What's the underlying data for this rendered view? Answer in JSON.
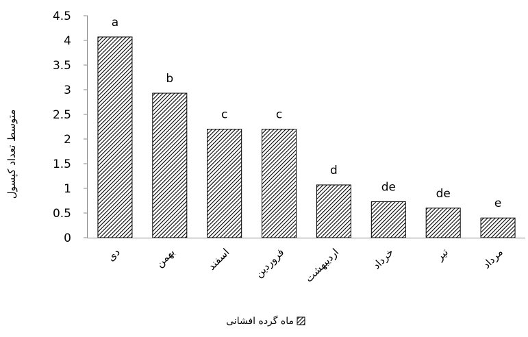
{
  "chart_data": {
    "type": "bar",
    "categories": [
      "دی",
      "بهمن",
      "اسفند",
      "فروردین",
      "اردیبهشت",
      "خرداد",
      "تیر",
      "مرداد"
    ],
    "series": [
      {
        "name": "ماه گرده افشانی",
        "values": [
          4.07,
          2.93,
          2.2,
          2.2,
          1.07,
          0.73,
          0.6,
          0.4
        ],
        "labels": [
          "a",
          "b",
          "c",
          "c",
          "d",
          "de",
          "de",
          "e"
        ]
      }
    ],
    "title": "",
    "xlabel": "",
    "ylabel": "متوسط تعداد کپسول",
    "ylim": [
      0,
      4.5
    ],
    "yticks": [
      0,
      0.5,
      1,
      1.5,
      2,
      2.5,
      3,
      3.5,
      4,
      4.5
    ],
    "ytick_labels": [
      "0",
      "0.5",
      "1",
      "1.5",
      "2",
      "2.5",
      "3",
      "3.5",
      "4",
      "4.5"
    ],
    "grid": false,
    "legend": "bottom",
    "bar_pattern": "diagonal-hatch",
    "bar_color": "#000000"
  }
}
